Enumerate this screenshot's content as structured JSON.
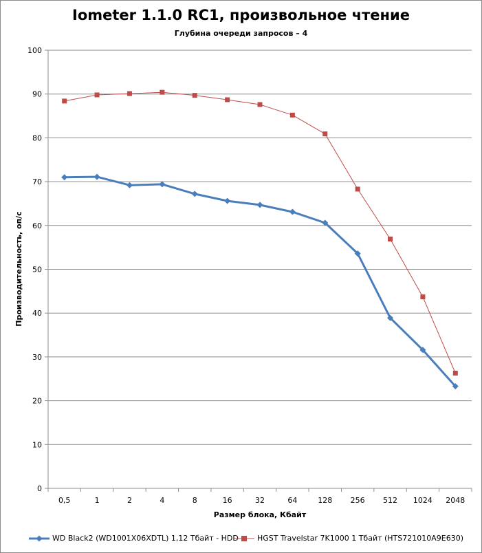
{
  "chart_data": {
    "type": "line",
    "title": "Iometer 1.1.0 RC1, произвольное чтение",
    "subtitle": "Глубина очереди запросов – 4",
    "xlabel": "Размер блока, Кбайт",
    "ylabel": "Производительность,  оп/с",
    "categories": [
      "0,5",
      "1",
      "2",
      "4",
      "8",
      "16",
      "32",
      "64",
      "128",
      "256",
      "512",
      "1024",
      "2048"
    ],
    "ylim": [
      0,
      100
    ],
    "yticks": [
      0,
      10,
      20,
      30,
      40,
      50,
      60,
      70,
      80,
      90,
      100
    ],
    "grid": true,
    "legend_position": "bottom",
    "series": [
      {
        "name": "WD Black2 (WD1001X06XDTL) 1,12 Тбайт - HDD",
        "color": "#4a7ebb",
        "marker": "diamond",
        "values": [
          71.0,
          71.1,
          69.2,
          69.4,
          67.2,
          65.6,
          64.7,
          63.1,
          60.6,
          53.6,
          38.9,
          31.6,
          23.3
        ]
      },
      {
        "name": "HGST Travelstar 7K1000 1 Тбайт (HTS721010A9E630)",
        "color": "#be4b48",
        "marker": "square",
        "values": [
          88.4,
          89.8,
          90.1,
          90.4,
          89.7,
          88.7,
          87.6,
          85.2,
          80.9,
          68.3,
          56.9,
          43.7,
          26.3
        ]
      }
    ]
  }
}
